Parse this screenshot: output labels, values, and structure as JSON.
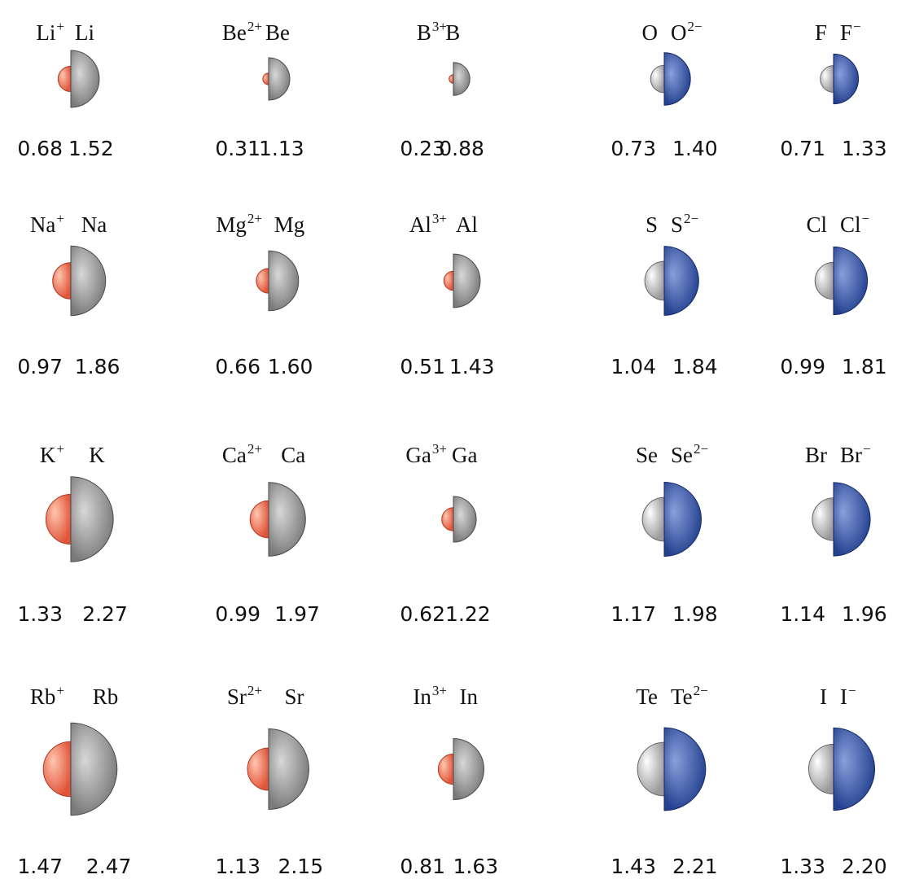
{
  "colors": {
    "cation": "#e0553a",
    "cation_light": "#ffc7b0",
    "atom": "#7a7a7a",
    "atom_light": "#d8d8d8",
    "neutral_small": "#9a9a9a",
    "neutral_small_light": "#ffffff",
    "anion": "#24418f",
    "anion_light": "#8aa0dc"
  },
  "groups": [
    {
      "kind": "cation",
      "columns": [
        {
          "rows": [
            {
              "small_symbol": "Li",
              "small_charge": "+",
              "small_radius": "0.68",
              "large_symbol": "Li",
              "large_charge": "",
              "large_radius": "1.52"
            },
            {
              "small_symbol": "Na",
              "small_charge": "+",
              "small_radius": "0.97",
              "large_symbol": "Na",
              "large_charge": "",
              "large_radius": "1.86"
            },
            {
              "small_symbol": "K",
              "small_charge": "+",
              "small_radius": "1.33",
              "large_symbol": "K",
              "large_charge": "",
              "large_radius": "2.27"
            },
            {
              "small_symbol": "Rb",
              "small_charge": "+",
              "small_radius": "1.47",
              "large_symbol": "Rb",
              "large_charge": "",
              "large_radius": "2.47"
            }
          ]
        },
        {
          "rows": [
            {
              "small_symbol": "Be",
              "small_charge": "2+",
              "small_radius": "0.31",
              "large_symbol": "Be",
              "large_charge": "",
              "large_radius": "1.13"
            },
            {
              "small_symbol": "Mg",
              "small_charge": "2+",
              "small_radius": "0.66",
              "large_symbol": "Mg",
              "large_charge": "",
              "large_radius": "1.60"
            },
            {
              "small_symbol": "Ca",
              "small_charge": "2+",
              "small_radius": "0.99",
              "large_symbol": "Ca",
              "large_charge": "",
              "large_radius": "1.97"
            },
            {
              "small_symbol": "Sr",
              "small_charge": "2+",
              "small_radius": "1.13",
              "large_symbol": "Sr",
              "large_charge": "",
              "large_radius": "2.15"
            }
          ]
        },
        {
          "rows": [
            {
              "small_symbol": "B",
              "small_charge": "3+",
              "small_radius": "0.23",
              "large_symbol": "B",
              "large_charge": "",
              "large_radius": "0.88"
            },
            {
              "small_symbol": "Al",
              "small_charge": "3+",
              "small_radius": "0.51",
              "large_symbol": "Al",
              "large_charge": "",
              "large_radius": "1.43"
            },
            {
              "small_symbol": "Ga",
              "small_charge": "3+",
              "small_radius": "0.62",
              "large_symbol": "Ga",
              "large_charge": "",
              "large_radius": "1.22"
            },
            {
              "small_symbol": "In",
              "small_charge": "3+",
              "small_radius": "0.81",
              "large_symbol": "In",
              "large_charge": "",
              "large_radius": "1.63"
            }
          ]
        }
      ]
    },
    {
      "kind": "anion",
      "columns": [
        {
          "rows": [
            {
              "small_symbol": "O",
              "small_charge": "",
              "small_radius": "0.73",
              "large_symbol": "O",
              "large_charge": "2−",
              "large_radius": "1.40"
            },
            {
              "small_symbol": "S",
              "small_charge": "",
              "small_radius": "1.04",
              "large_symbol": "S",
              "large_charge": "2−",
              "large_radius": "1.84"
            },
            {
              "small_symbol": "Se",
              "small_charge": "",
              "small_radius": "1.17",
              "large_symbol": "Se",
              "large_charge": "2−",
              "large_radius": "1.98"
            },
            {
              "small_symbol": "Te",
              "small_charge": "",
              "small_radius": "1.43",
              "large_symbol": "Te",
              "large_charge": "2−",
              "large_radius": "2.21"
            }
          ]
        },
        {
          "rows": [
            {
              "small_symbol": "F",
              "small_charge": "",
              "small_radius": "0.71",
              "large_symbol": "F",
              "large_charge": "−",
              "large_radius": "1.33"
            },
            {
              "small_symbol": "Cl",
              "small_charge": "",
              "small_radius": "0.99",
              "large_symbol": "Cl",
              "large_charge": "−",
              "large_radius": "1.81"
            },
            {
              "small_symbol": "Br",
              "small_charge": "",
              "small_radius": "1.14",
              "large_symbol": "Br",
              "large_charge": "−",
              "large_radius": "1.96"
            },
            {
              "small_symbol": "I",
              "small_charge": "",
              "small_radius": "1.33",
              "large_symbol": "I",
              "large_charge": "−",
              "large_radius": "2.20"
            }
          ]
        }
      ]
    }
  ]
}
